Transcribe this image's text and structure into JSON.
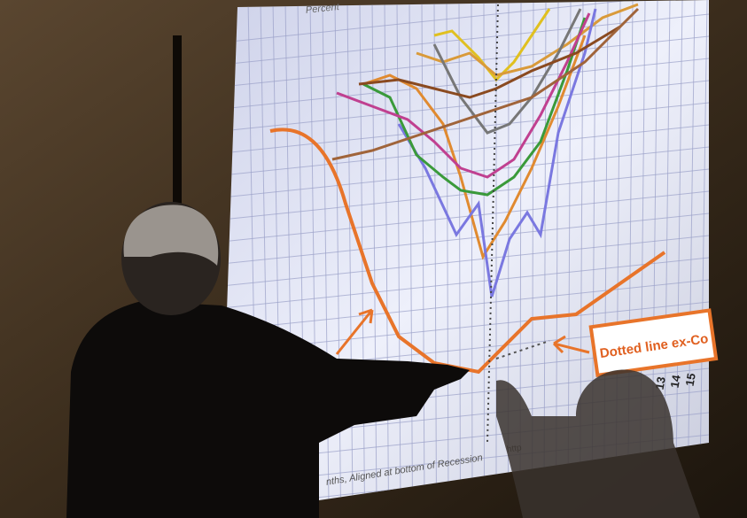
{
  "projected_chart": {
    "title": "Percent",
    "annotation": "Dotted line ex-Co",
    "axis_title": "nths, Aligned at bottom of Recession",
    "x_tick_labels": [
      "13",
      "14",
      "15"
    ],
    "source": "http"
  }
}
